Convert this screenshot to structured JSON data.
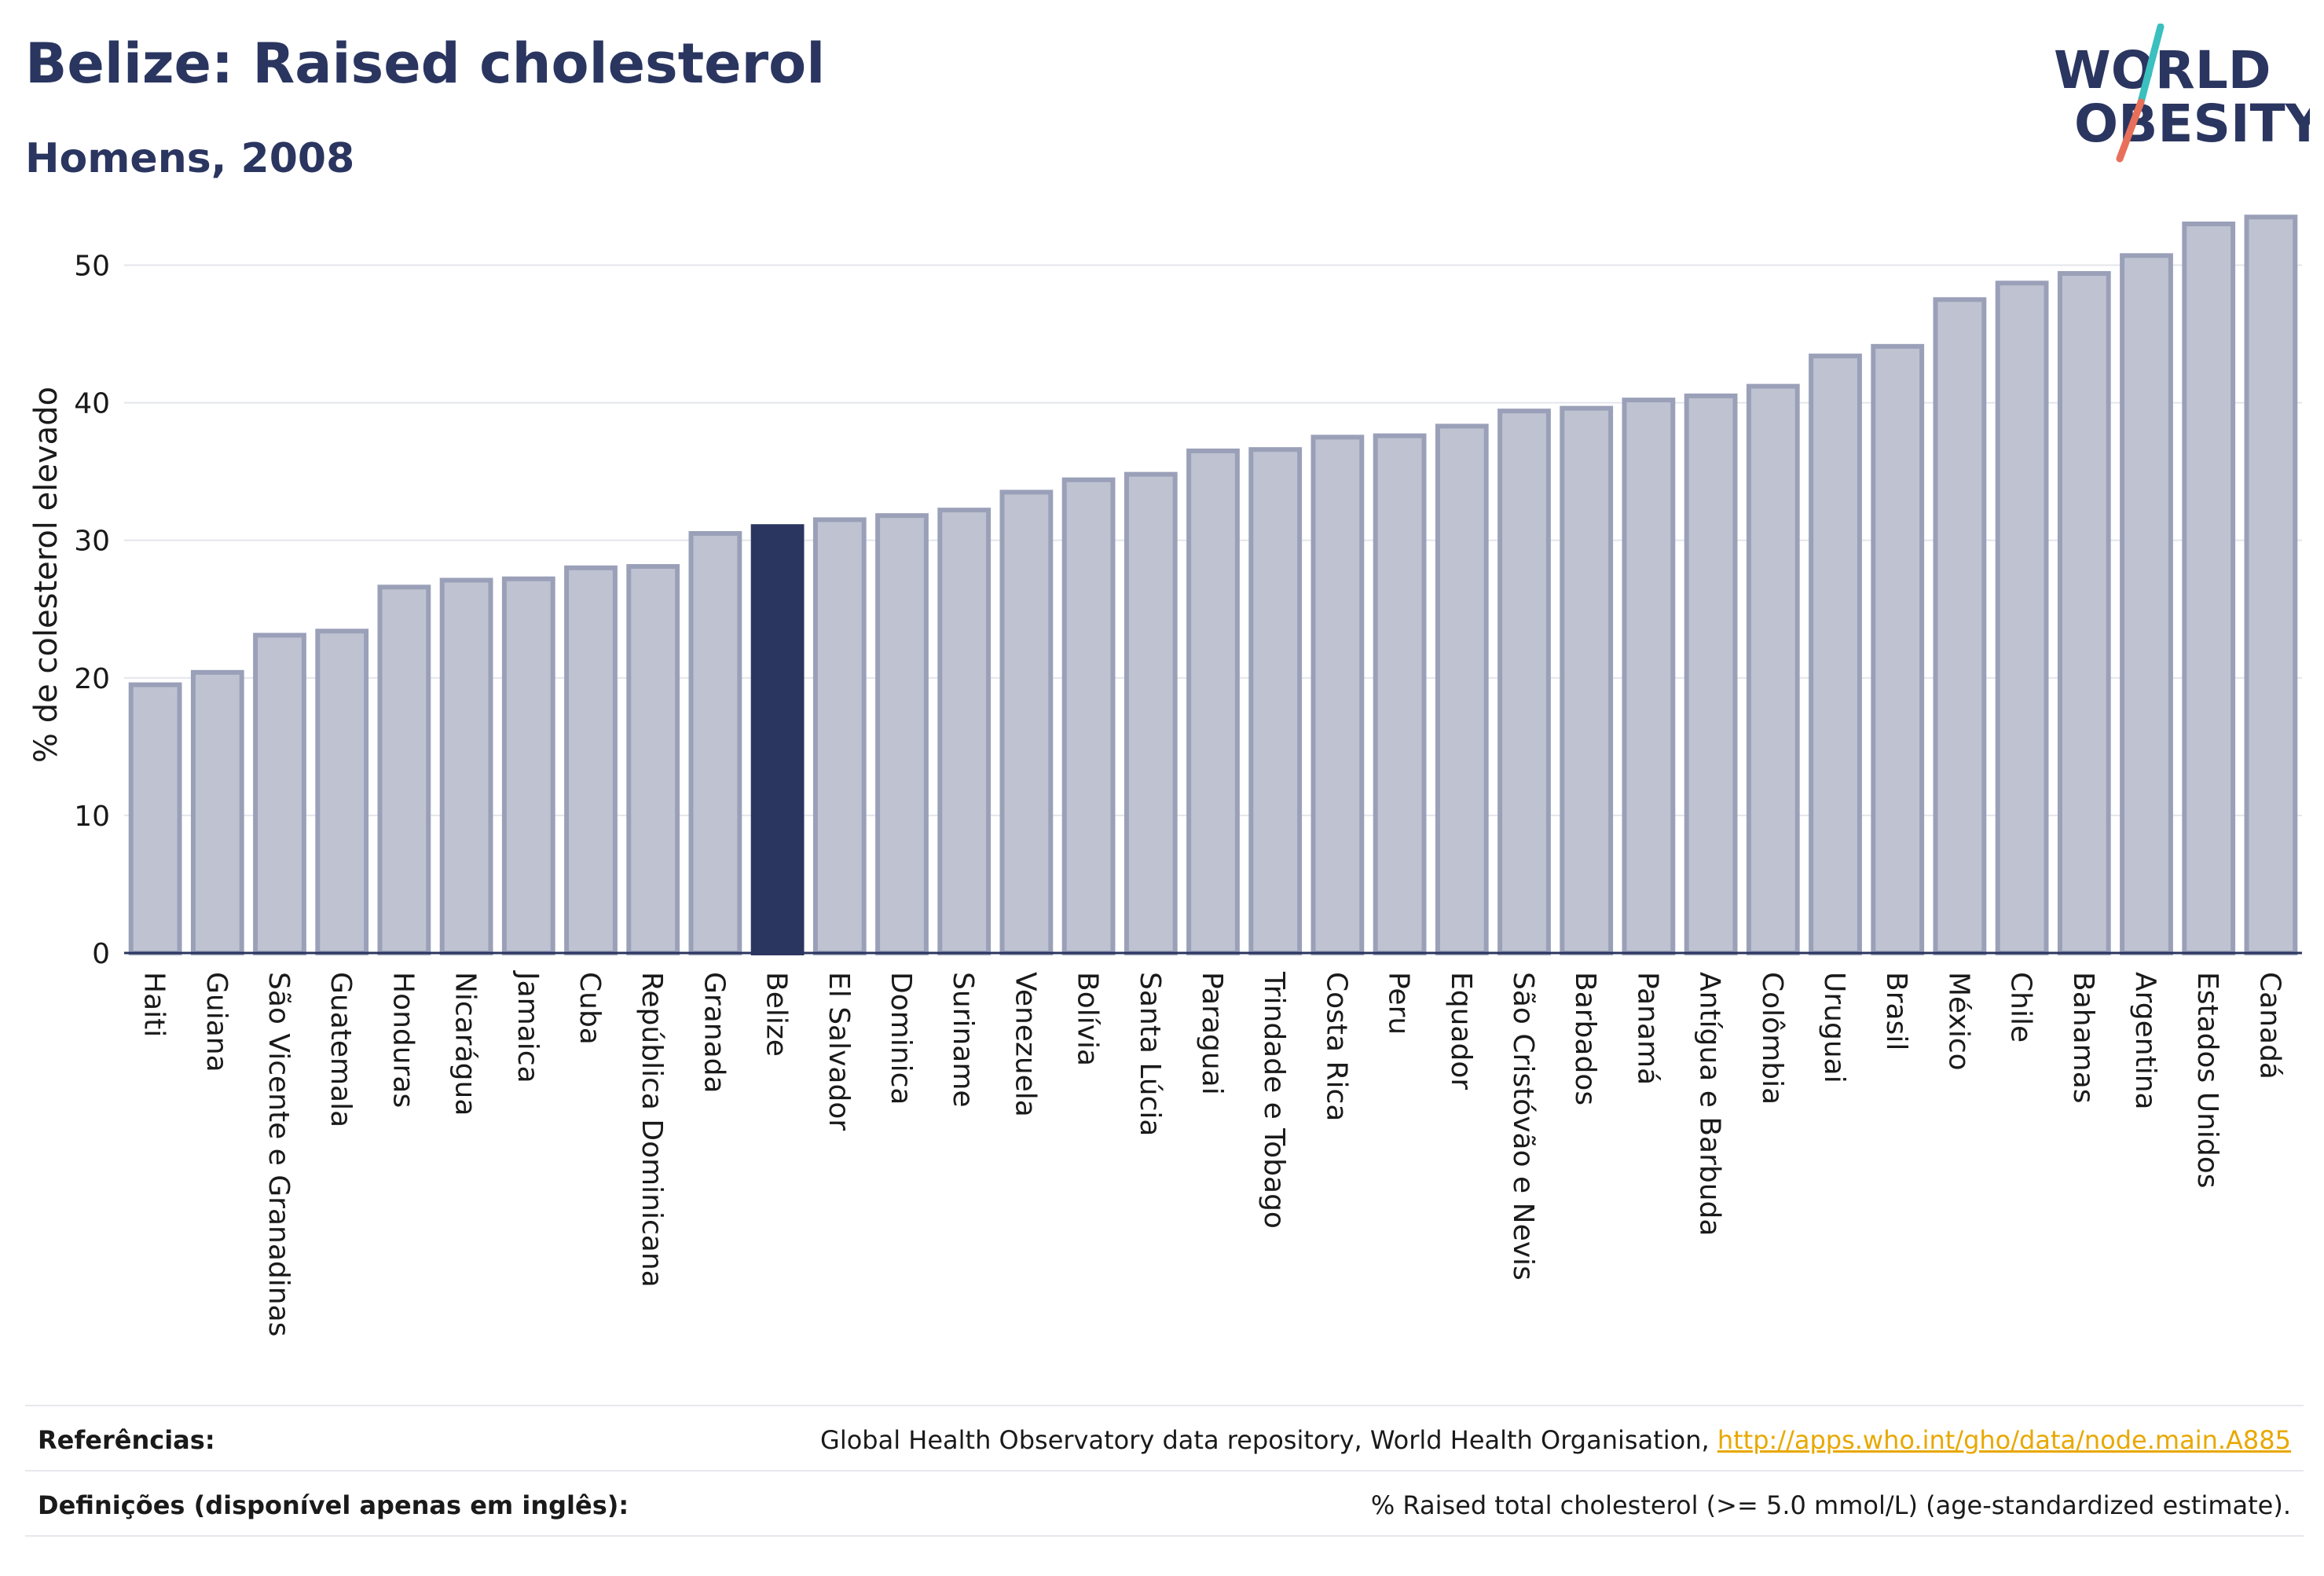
{
  "header": {
    "title": "Belize: Raised cholesterol",
    "subtitle": "Homens, 2008"
  },
  "logo": {
    "line1": "WORLD",
    "line2": "OBESITY",
    "accent_teal": "#3bbfbf",
    "accent_coral": "#e8705a",
    "text_color": "#2a3560"
  },
  "colors": {
    "bar": "#bfc3d1",
    "bar_border": "#9aa0b8",
    "highlight": "#2a3560",
    "grid": "#e4e6ec",
    "axis": "#2a3560"
  },
  "chart_data": {
    "type": "bar",
    "ylabel": "% de colesterol elevado",
    "ylim": [
      0,
      55
    ],
    "yticks": [
      0,
      10,
      20,
      30,
      40,
      50
    ],
    "grid": true,
    "highlight": "Belize",
    "categories": [
      "Haiti",
      "Guiana",
      "São Vicente e Granadinas",
      "Guatemala",
      "Honduras",
      "Nicarágua",
      "Jamaica",
      "Cuba",
      "República Dominicana",
      "Granada",
      "Belize",
      "El Salvador",
      "Dominica",
      "Suriname",
      "Venezuela",
      "Bolívia",
      "Santa Lúcia",
      "Paraguai",
      "Trindade e Tobago",
      "Costa Rica",
      "Peru",
      "Equador",
      "São Cristóvão e Nevis",
      "Barbados",
      "Panamá",
      "Antígua e Barbuda",
      "Colômbia",
      "Uruguai",
      "Brasil",
      "México",
      "Chile",
      "Bahamas",
      "Argentina",
      "Estados Unidos",
      "Canadá"
    ],
    "values": [
      19.5,
      20.4,
      23.1,
      23.4,
      26.6,
      27.1,
      27.2,
      28.0,
      28.1,
      30.5,
      31.0,
      31.5,
      31.8,
      32.2,
      33.5,
      34.4,
      34.8,
      36.5,
      36.6,
      37.5,
      37.6,
      38.3,
      39.4,
      39.6,
      40.2,
      40.5,
      41.2,
      43.4,
      44.1,
      47.5,
      48.7,
      49.4,
      50.7,
      53.0,
      53.5
    ]
  },
  "footer": {
    "references_label": "Referências:",
    "references_text": "Global Health Observatory data repository, World Health Organisation, ",
    "references_link": "http://apps.who.int/gho/data/node.main.A885",
    "definitions_label": "Definições (disponível apenas em inglês):",
    "definitions_text": "% Raised total cholesterol (>= 5.0 mmol/L) (age-standardized estimate)."
  }
}
